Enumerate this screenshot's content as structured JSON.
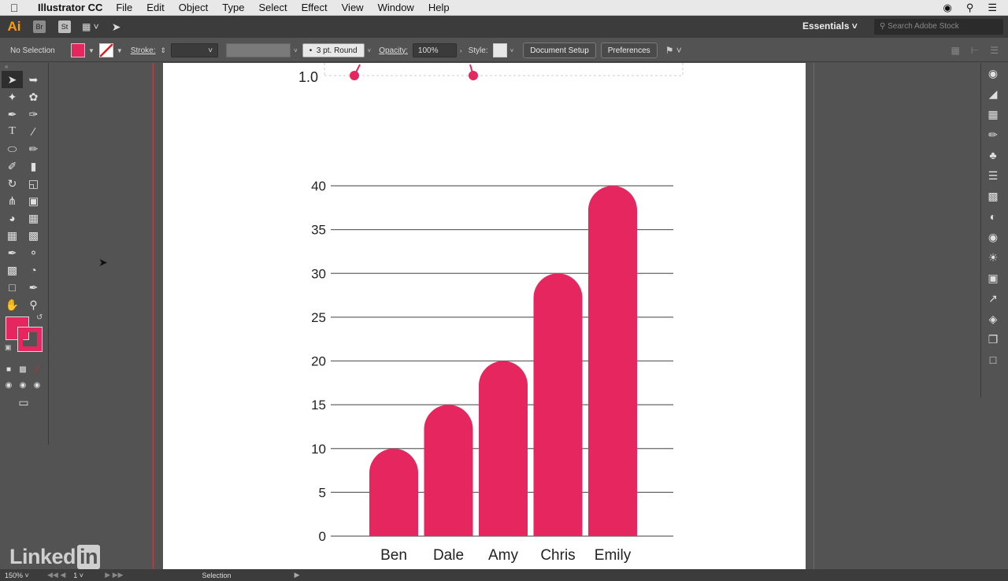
{
  "menubar": {
    "app_name": "Illustrator CC",
    "items": [
      "File",
      "Edit",
      "Object",
      "Type",
      "Select",
      "Effect",
      "View",
      "Window",
      "Help"
    ]
  },
  "appbar": {
    "logo": "Ai",
    "bridge": "Br",
    "stock": "St",
    "workspace": "Essentials",
    "search_placeholder": "Search Adobe Stock"
  },
  "control": {
    "selection_label": "No Selection",
    "stroke_label": "Stroke:",
    "brush_label": "3 pt. Round",
    "opacity_label": "Opacity:",
    "opacity_value": "100%",
    "style_label": "Style:",
    "doc_setup": "Document Setup",
    "preferences": "Preferences",
    "fill_color": "#e5265f"
  },
  "status": {
    "zoom": "150%",
    "page": "1",
    "mode": "Selection"
  },
  "watermark": {
    "text1": "Linked",
    "text2": "in"
  },
  "top_chart_label": "1.0",
  "chart_data": {
    "type": "bar",
    "categories": [
      "Ben",
      "Dale",
      "Amy",
      "Chris",
      "Emily"
    ],
    "values": [
      10,
      15,
      20,
      30,
      40
    ],
    "ylim": [
      0,
      40
    ],
    "yticks": [
      "0",
      "5",
      "10",
      "15",
      "20",
      "25",
      "30",
      "35",
      "40"
    ],
    "grid": true,
    "bar_color": "#e5265f"
  }
}
